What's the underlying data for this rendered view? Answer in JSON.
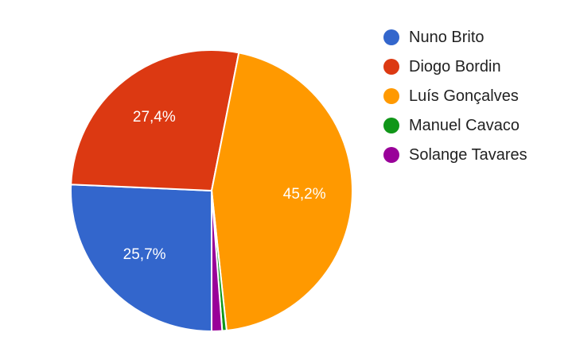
{
  "chart_data": {
    "type": "pie",
    "title": "",
    "legend_position": "right",
    "slices": [
      {
        "name": "Nuno Brito",
        "value": 25.7,
        "label": "25,7%",
        "color": "#3366cc"
      },
      {
        "name": "Diogo Bordin",
        "value": 27.4,
        "label": "27,4%",
        "color": "#dc3912"
      },
      {
        "name": "Luís Gonçalves",
        "value": 45.2,
        "label": "45,2%",
        "color": "#ff9900"
      },
      {
        "name": "Manuel Cavaco",
        "value": 0.5,
        "label": "",
        "color": "#109618"
      },
      {
        "name": "Solange Tavares",
        "value": 1.2,
        "label": "",
        "color": "#990099"
      }
    ]
  }
}
